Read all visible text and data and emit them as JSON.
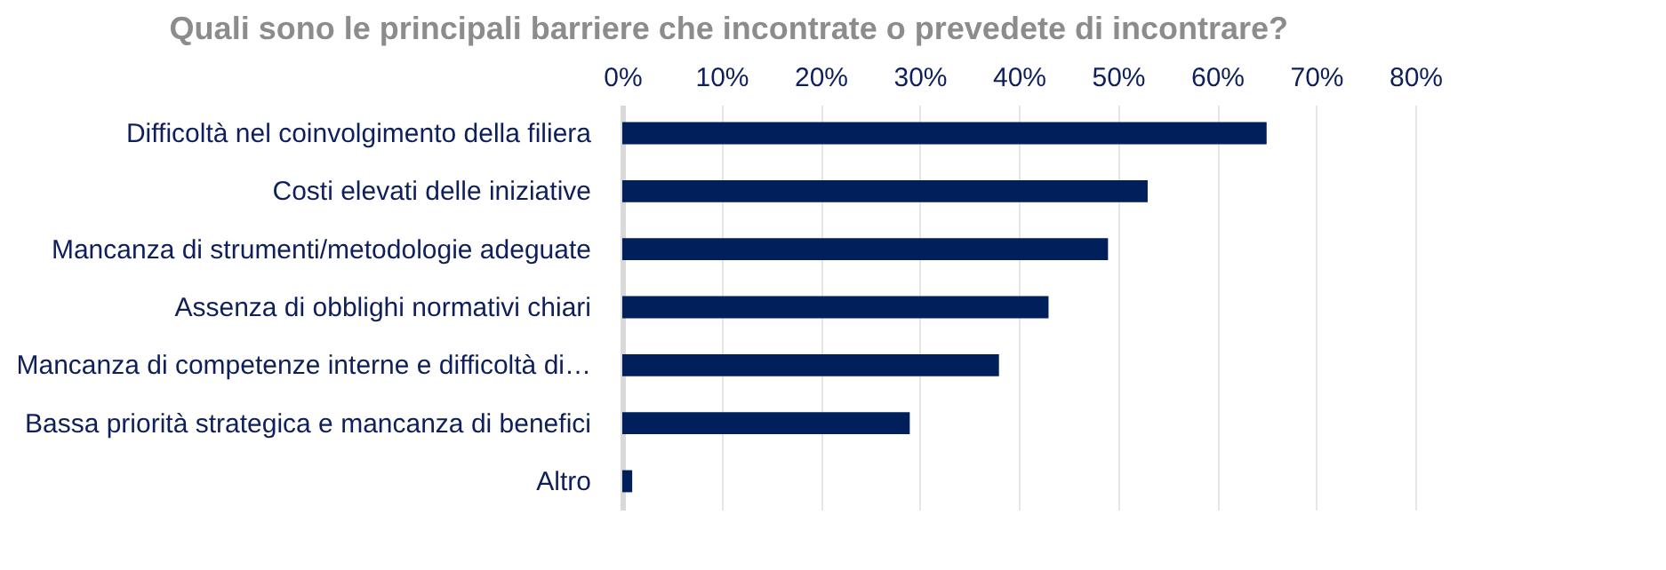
{
  "chart_data": {
    "type": "bar",
    "orientation": "horizontal",
    "title": "Quali sono le principali barriere che incontrate o prevedete di incontrare?",
    "categories": [
      "Difficoltà nel coinvolgimento della filiera",
      "Costi elevati delle iniziative",
      "Mancanza di strumenti/metodologie adeguate",
      "Assenza di obblighi normativi chiari",
      "Mancanza di competenze interne e difficoltà di…",
      "Bassa priorità strategica e mancanza di benefici",
      "Altro"
    ],
    "values": [
      65,
      53,
      49,
      43,
      38,
      29,
      1
    ],
    "color": "#001f5b",
    "xlim": [
      0,
      80
    ],
    "xticks": [
      {
        "value": 0,
        "label": "0%"
      },
      {
        "value": 10,
        "label": "10%"
      },
      {
        "value": 20,
        "label": "20%"
      },
      {
        "value": 30,
        "label": "30%"
      },
      {
        "value": 40,
        "label": "40%"
      },
      {
        "value": 50,
        "label": "50%"
      },
      {
        "value": 60,
        "label": "60%"
      },
      {
        "value": 70,
        "label": "70%"
      },
      {
        "value": 80,
        "label": "80%"
      }
    ],
    "grid": true
  }
}
